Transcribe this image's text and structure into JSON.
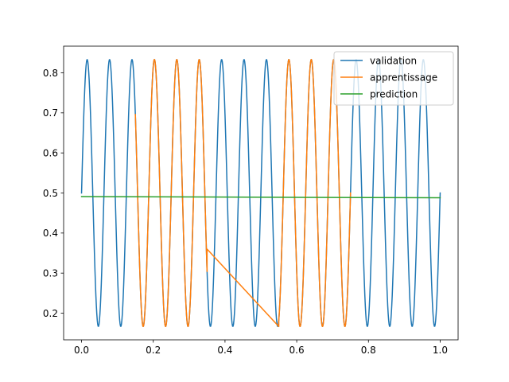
{
  "chart_data": {
    "type": "line",
    "title": "",
    "xlabel": "",
    "ylabel": "",
    "xlim": [
      -0.05,
      1.05
    ],
    "ylim": [
      0.1335,
      0.8665
    ],
    "grid": false,
    "legend_position": "top-right",
    "x_ticks": [
      {
        "value": 0.0,
        "label": "0.0"
      },
      {
        "value": 0.2,
        "label": "0.2"
      },
      {
        "value": 0.4,
        "label": "0.4"
      },
      {
        "value": 0.6,
        "label": "0.6"
      },
      {
        "value": 0.8,
        "label": "0.8"
      },
      {
        "value": 1.0,
        "label": "1.0"
      }
    ],
    "y_ticks": [
      {
        "value": 0.2,
        "label": "0.2"
      },
      {
        "value": 0.3,
        "label": "0.3"
      },
      {
        "value": 0.4,
        "label": "0.4"
      },
      {
        "value": 0.5,
        "label": "0.5"
      },
      {
        "value": 0.6,
        "label": "0.6"
      },
      {
        "value": 0.7,
        "label": "0.7"
      },
      {
        "value": 0.8,
        "label": "0.8"
      }
    ],
    "series": [
      {
        "name": "validation",
        "color": "#1f77b4",
        "formula": "0.5 + 0.3333*sin(2*pi*16*x)",
        "x_start": 0.0,
        "x_end": 1.0,
        "samples": 801
      },
      {
        "name": "apprentissage",
        "color": "#ff7f0e",
        "formula": "0.5 + 0.3333*sin(2*pi*16*x)",
        "segments": [
          {
            "kind": "wave",
            "x_start": 0.15,
            "x_end": 0.35
          },
          {
            "kind": "line",
            "points": [
              [
                0.35,
                0.36
              ],
              [
                0.55,
                0.1667
              ]
            ]
          },
          {
            "kind": "wave",
            "x_start": 0.55,
            "x_end": 0.75
          }
        ]
      },
      {
        "name": "prediction",
        "color": "#2ca02c",
        "x": [
          0.0,
          1.0
        ],
        "y": [
          0.491,
          0.488
        ]
      }
    ]
  }
}
